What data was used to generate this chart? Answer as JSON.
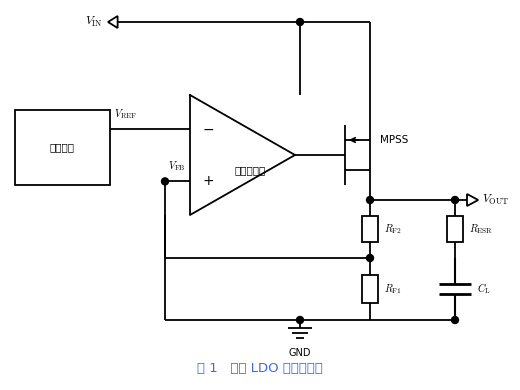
{
  "title": "图 1   典型 LDO 的电路框图",
  "title_color": "#4169E1",
  "bg_color": "#ffffff",
  "fig_width": 5.2,
  "fig_height": 3.9,
  "dpi": 100,
  "labels": {
    "VIN": "$V_{\\rm IN}$",
    "VREF": "$V_{\\rm REF}$",
    "VFB": "$V_{\\rm FB}$",
    "VOUT": "$V_{\\rm OUT}$",
    "GND": "GND",
    "MPSS": "MPSS",
    "RF2": "$R_{\\rm F2}$",
    "RF1": "$R_{\\rm F1}$",
    "RESR": "$R_{\\rm ESR}$",
    "CL": "$C_{\\rm L}$",
    "opamp_label": "误差放大器",
    "ref_box_label": "基准电压",
    "minus": "$-$",
    "plus": "$+$"
  }
}
